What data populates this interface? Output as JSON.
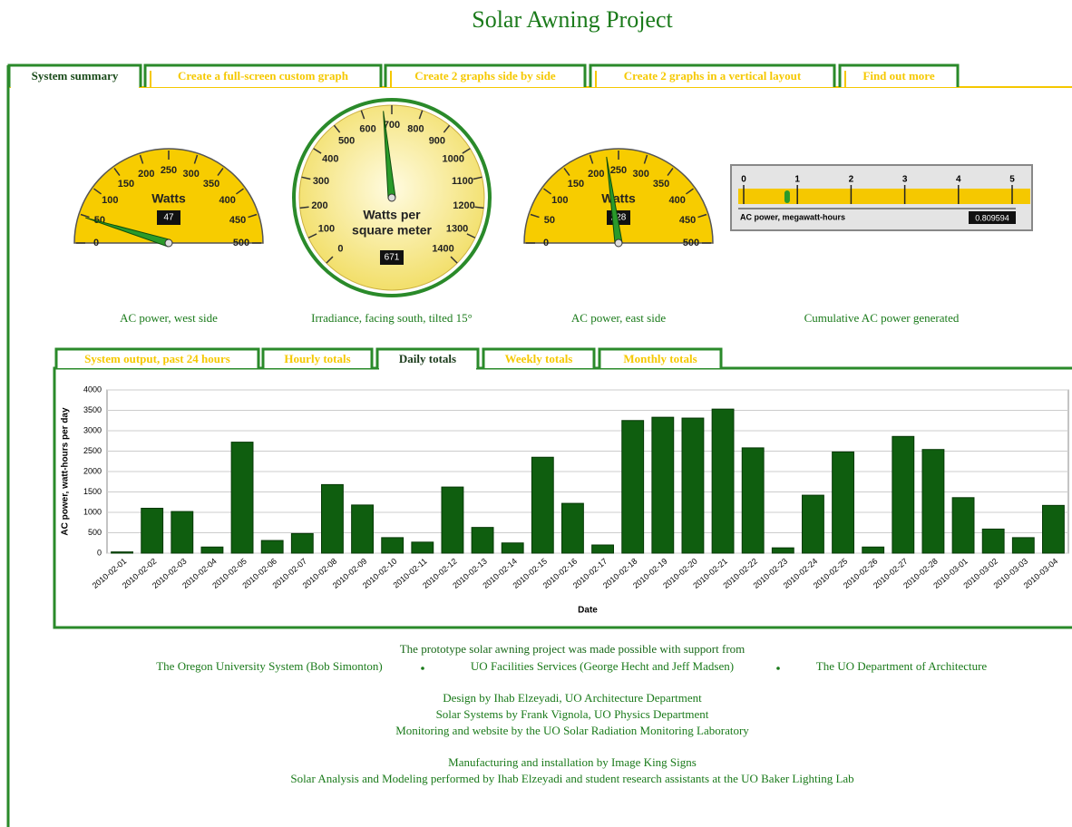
{
  "header": {
    "title": "Solar Awning Project"
  },
  "tabs": {
    "items": [
      "System summary",
      "Create a full-screen custom graph",
      "Create 2 graphs side by side",
      "Create 2 graphs in a vertical layout",
      "Find out more"
    ],
    "active": 0
  },
  "gauges": [
    {
      "kind": "semi",
      "unit_lines": [
        "Watts"
      ],
      "value": 47,
      "lim": [
        0,
        500
      ],
      "ticks": [
        0,
        50,
        100,
        150,
        200,
        250,
        300,
        350,
        400,
        450,
        500
      ],
      "caption": "AC power, west side"
    },
    {
      "kind": "full",
      "unit_lines": [
        "Watts per",
        "square meter"
      ],
      "value": 671,
      "lim": [
        0,
        1400
      ],
      "ticks": [
        0,
        100,
        200,
        300,
        400,
        500,
        600,
        700,
        800,
        900,
        1000,
        1100,
        1200,
        1300,
        1400
      ],
      "caption": "Irradiance, facing south, tilted 15°"
    },
    {
      "kind": "semi",
      "unit_lines": [
        "Watts"
      ],
      "value": 228,
      "lim": [
        0,
        500
      ],
      "ticks": [
        0,
        50,
        100,
        150,
        200,
        250,
        300,
        350,
        400,
        450,
        500
      ],
      "caption": "AC power, east side"
    }
  ],
  "meter": {
    "label": "AC power, megawatt-hours",
    "value": 0.809594,
    "lim": [
      0,
      5
    ],
    "ticks": [
      0,
      1,
      2,
      3,
      4,
      5
    ],
    "caption": "Cumulative AC power generated"
  },
  "chart_tabs": {
    "items": [
      "System output, past 24 hours",
      "Hourly totals",
      "Daily totals",
      "Weekly totals",
      "Monthly totals"
    ],
    "active": 2
  },
  "chart_data": {
    "type": "bar",
    "x_label": "Date",
    "y_label": "AC power, watt-hours per day",
    "categories": [
      "2010-02-01",
      "2010-02-02",
      "2010-02-03",
      "2010-02-04",
      "2010-02-05",
      "2010-02-06",
      "2010-02-07",
      "2010-02-08",
      "2010-02-09",
      "2010-02-10",
      "2010-02-11",
      "2010-02-12",
      "2010-02-13",
      "2010-02-14",
      "2010-02-15",
      "2010-02-16",
      "2010-02-17",
      "2010-02-18",
      "2010-02-19",
      "2010-02-20",
      "2010-02-21",
      "2010-02-22",
      "2010-02-23",
      "2010-02-24",
      "2010-02-25",
      "2010-02-26",
      "2010-02-27",
      "2010-02-28",
      "2010-03-01",
      "2010-03-02",
      "2010-03-03",
      "2010-03-04"
    ],
    "values": [
      30,
      1100,
      1020,
      150,
      2720,
      310,
      480,
      1680,
      1180,
      380,
      270,
      1620,
      630,
      250,
      2350,
      1220,
      200,
      3250,
      3330,
      3310,
      3530,
      2580,
      130,
      1420,
      2480,
      150,
      2860,
      2540,
      1360,
      590,
      380,
      1170
    ],
    "color": "#0f5e0f",
    "ylim": [
      0,
      4000
    ],
    "yticks": [
      0,
      500,
      1000,
      1500,
      2000,
      2500,
      3000,
      3500,
      4000
    ],
    "grid": true
  },
  "footer": {
    "intro": "The prototype solar awning project was made possible with support from",
    "sponsors": [
      "The Oregon University System (Bob Simonton)",
      "UO Facilities Services (George Hecht and Jeff Madsen)",
      "The UO Department of Architecture"
    ],
    "credits": [
      "Design by Ihab Elzeyadi, UO Architecture Department",
      "Solar Systems by Frank Vignola, UO Physics Department",
      "Monitoring and website by the UO Solar Radiation Monitoring Laboratory"
    ],
    "more": [
      "Manufacturing and installation by Image King Signs",
      "Solar Analysis and Modeling performed by Ihab Elzeyadi and student research assistants at the UO Baker Lighting Lab"
    ]
  }
}
